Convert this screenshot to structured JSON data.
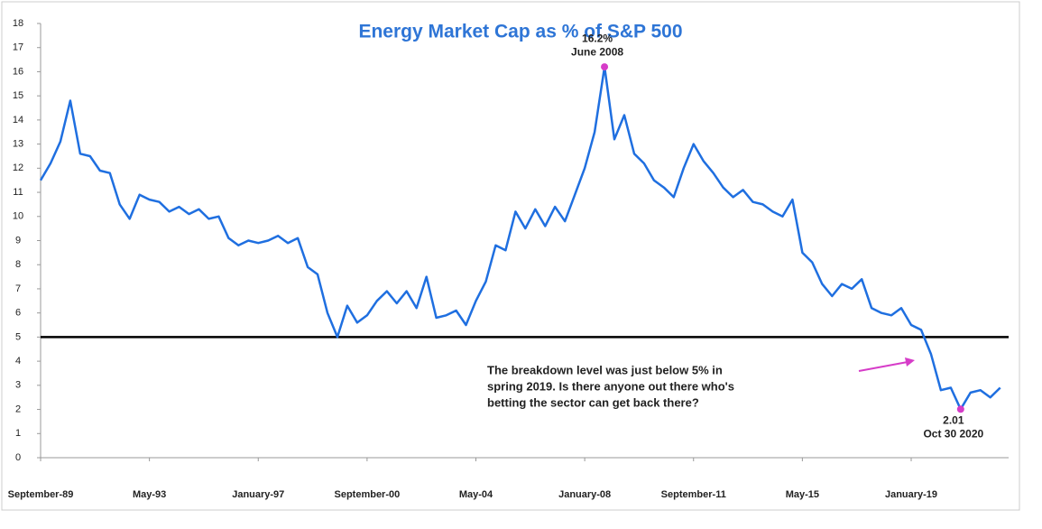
{
  "chart_data": {
    "type": "line",
    "title": "Energy Market Cap as % of S&P 500",
    "categories": [
      "September-89",
      null,
      null,
      null,
      null,
      null,
      null,
      null,
      null,
      null,
      null,
      "May-93",
      null,
      null,
      null,
      null,
      null,
      null,
      null,
      null,
      null,
      null,
      "January-97",
      null,
      null,
      null,
      null,
      null,
      null,
      null,
      null,
      null,
      null,
      "September-00",
      null,
      null,
      null,
      null,
      null,
      null,
      null,
      null,
      null,
      null,
      "May-04",
      null,
      null,
      null,
      null,
      null,
      null,
      null,
      null,
      null,
      null,
      "January-08",
      null,
      null,
      null,
      null,
      null,
      null,
      null,
      null,
      null,
      null,
      "September-11",
      null,
      null,
      null,
      null,
      null,
      null,
      null,
      null,
      null,
      null,
      "May-15",
      null,
      null,
      null,
      null,
      null,
      null,
      null,
      null,
      null,
      null,
      "January-19",
      null,
      null,
      null,
      null,
      null,
      null,
      null,
      null,
      null
    ],
    "series": [
      {
        "color": "#1f6fe0",
        "values": [
          11.5,
          12.2,
          13.1,
          14.8,
          12.6,
          12.5,
          11.9,
          11.8,
          10.5,
          9.9,
          10.9,
          10.7,
          10.6,
          10.2,
          10.4,
          10.1,
          10.3,
          9.9,
          10.0,
          9.1,
          8.8,
          9.0,
          8.9,
          9.0,
          9.2,
          8.9,
          9.1,
          7.9,
          7.6,
          6.0,
          5.0,
          6.3,
          5.6,
          5.9,
          6.5,
          6.9,
          6.4,
          6.9,
          6.2,
          7.5,
          5.8,
          5.9,
          6.1,
          5.5,
          6.5,
          7.3,
          8.8,
          8.6,
          10.2,
          9.5,
          10.3,
          9.6,
          10.4,
          9.8,
          10.9,
          12.0,
          13.5,
          16.2,
          13.2,
          14.2,
          12.6,
          12.2,
          11.5,
          11.2,
          10.8,
          12.0,
          13.0,
          12.3,
          11.8,
          11.2,
          10.8,
          11.1,
          10.6,
          10.5,
          10.2,
          10.0,
          10.7,
          8.5,
          8.1,
          7.2,
          6.7,
          7.2,
          7.0,
          7.4,
          6.2,
          6.0,
          5.9,
          6.2,
          5.5,
          5.3,
          4.3,
          2.8,
          2.9,
          2.01,
          2.7,
          2.8,
          2.5,
          2.9
        ]
      }
    ],
    "ylim": [
      0,
      18
    ],
    "yticks": [
      0,
      1,
      2,
      3,
      4,
      5,
      6,
      7,
      8,
      9,
      10,
      11,
      12,
      13,
      14,
      15,
      16,
      17,
      18
    ],
    "hline": 5,
    "annotations": [
      {
        "label": "16.2%",
        "date": "June 2008",
        "value": 16.2,
        "color": "#d63cc8"
      },
      {
        "label": "2.01",
        "date": "Oct 30 2020",
        "value": 2.01,
        "color": "#d63cc8"
      }
    ],
    "note": [
      "The breakdown level was just below 5% in",
      "spring 2019.  Is there anyone out there who's",
      "betting the sector can get back there?"
    ]
  }
}
